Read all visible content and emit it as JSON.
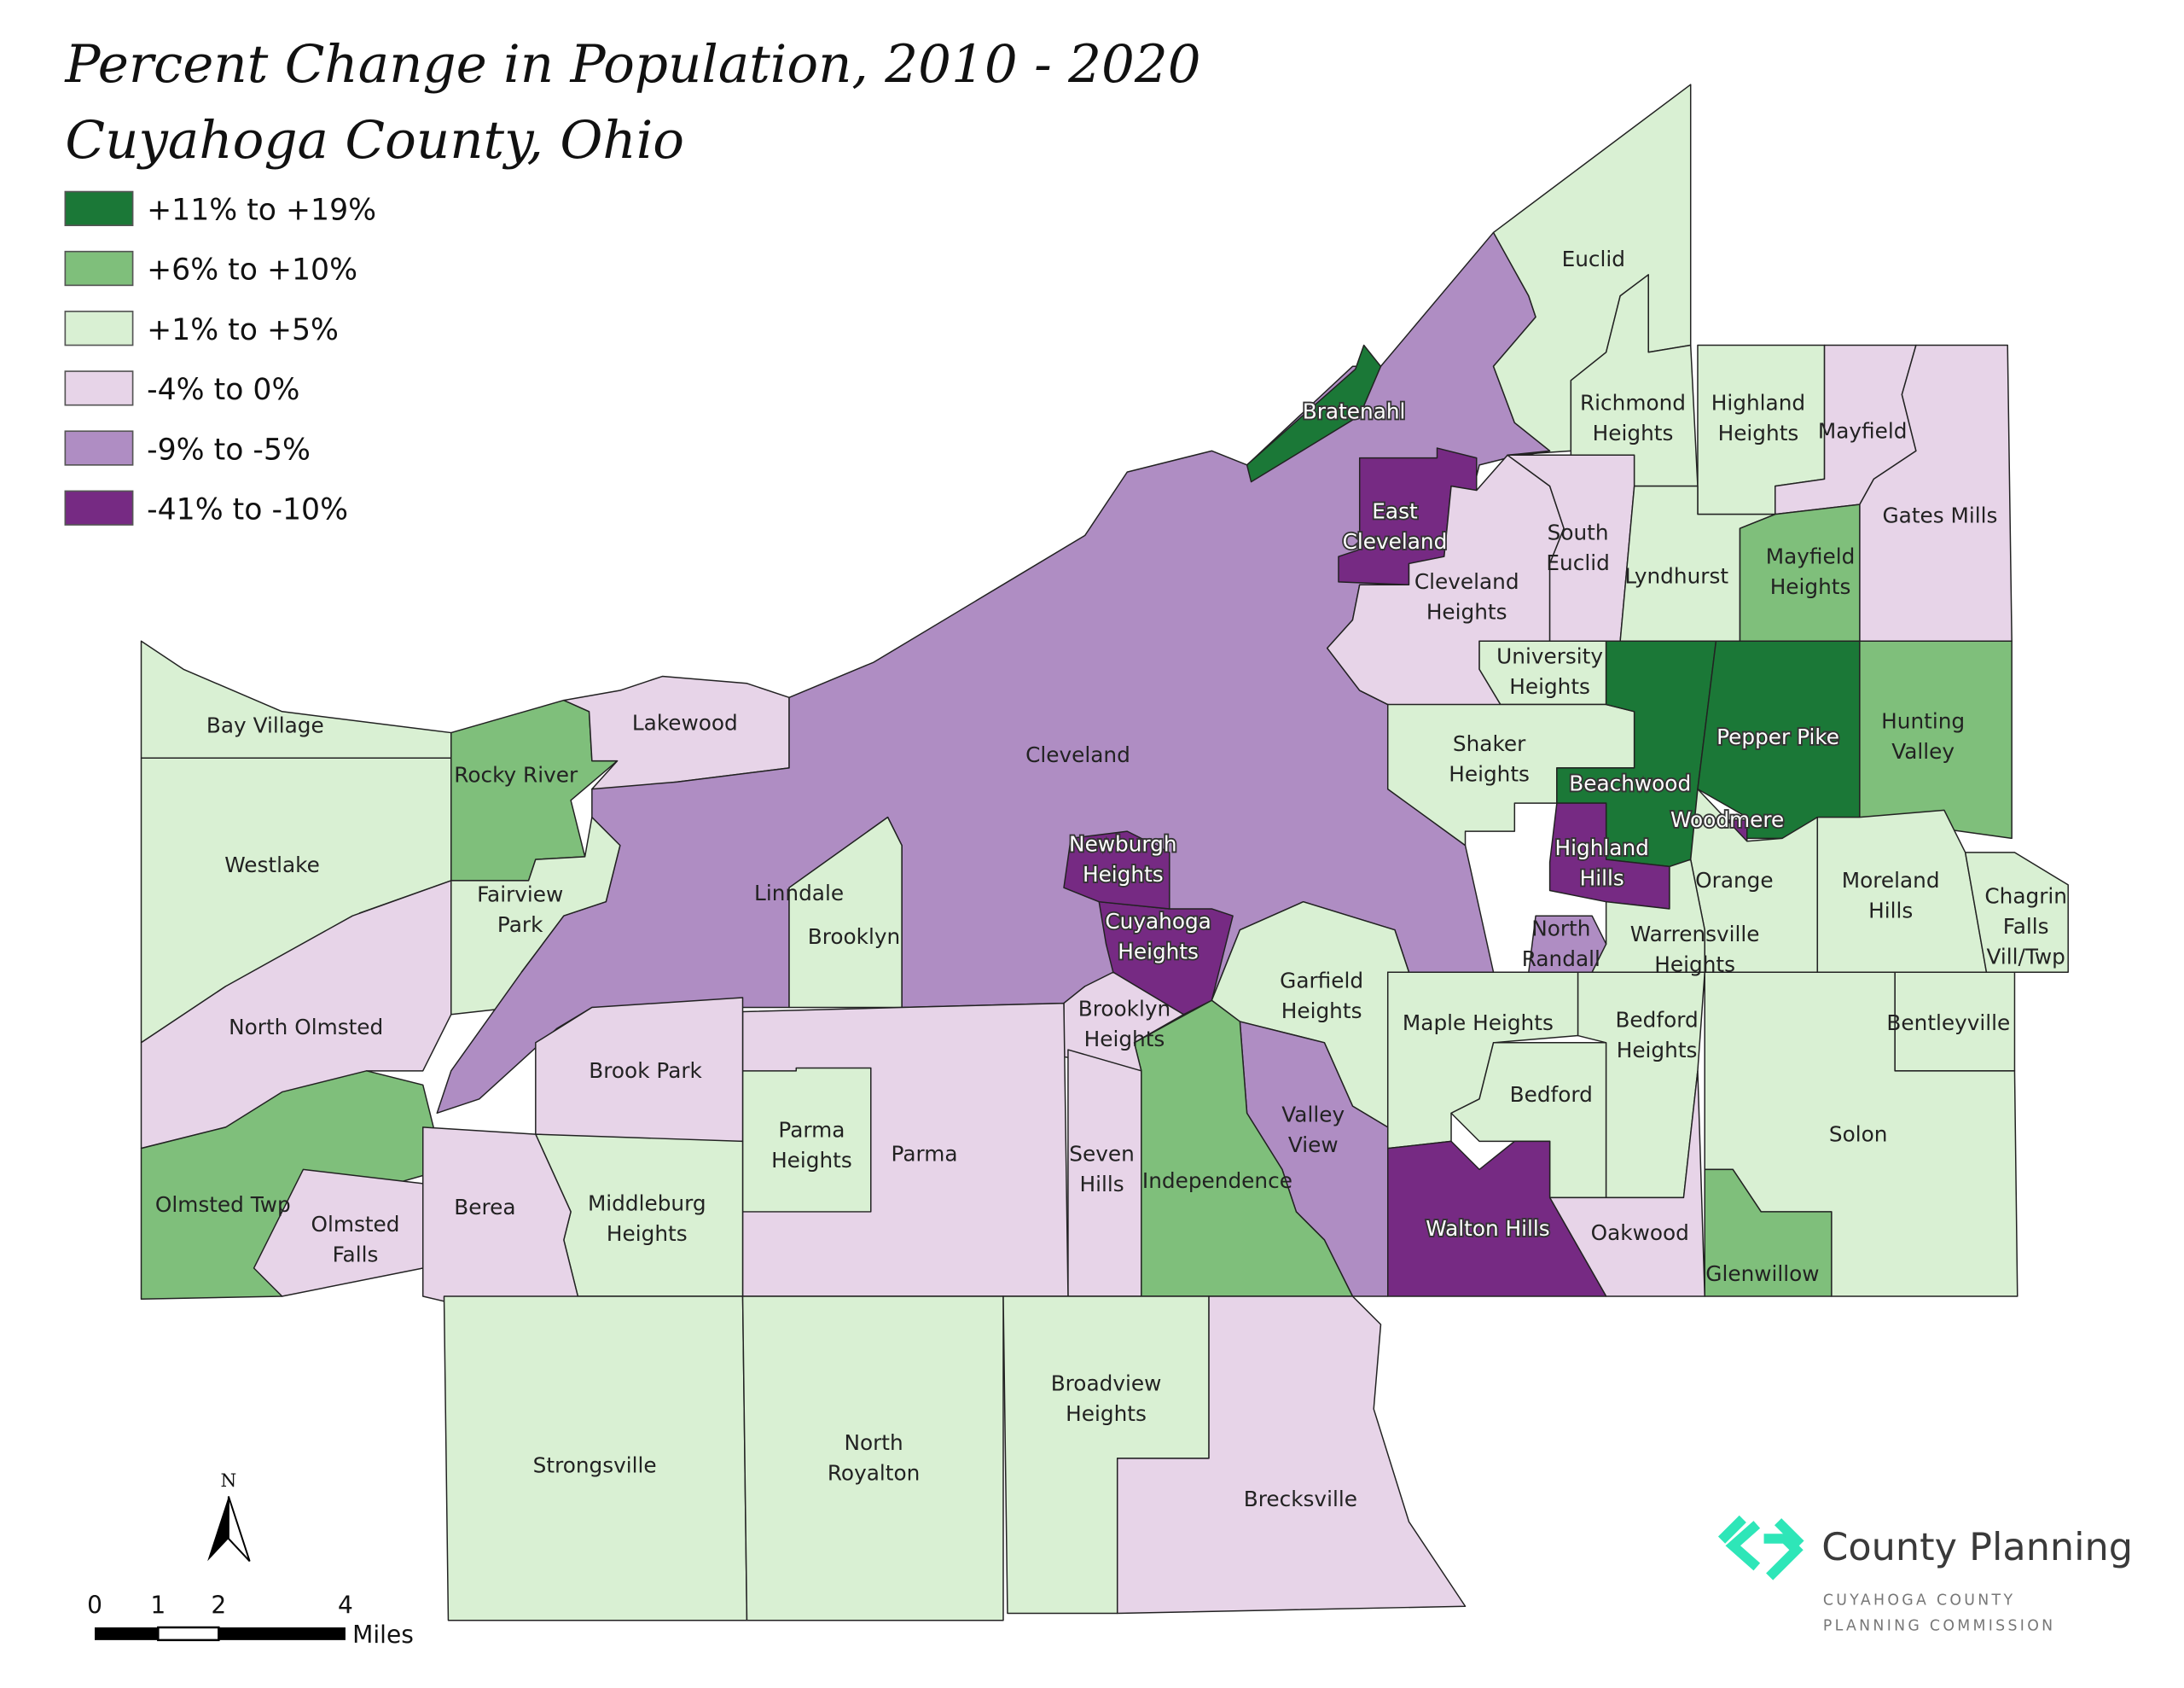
{
  "title": {
    "line1": "Percent Change in Population, 2010 - 2020",
    "line2": "Cuyahoga County, Ohio"
  },
  "legend": [
    {
      "label": "+11% to +19%",
      "color": "#1b7837"
    },
    {
      "label": "+6% to +10%",
      "color": "#7fbf7b"
    },
    {
      "label": "+1% to +5%",
      "color": "#d9f0d3"
    },
    {
      "label": "-4% to 0%",
      "color": "#e7d4e8"
    },
    {
      "label": "-9% to -5%",
      "color": "#af8dc3"
    },
    {
      "label": "-41% to -10%",
      "color": "#762a83"
    }
  ],
  "municipalities": [
    {
      "lines": [
        "Bay Village"
      ],
      "cat": 2
    },
    {
      "lines": [
        "Westlake"
      ],
      "cat": 2
    },
    {
      "lines": [
        "North Olmsted"
      ],
      "cat": 3
    },
    {
      "lines": [
        "Olmsted Twp"
      ],
      "cat": 1
    },
    {
      "lines": [
        "Olmsted",
        "Falls"
      ],
      "cat": 3
    },
    {
      "lines": [
        "Rocky River"
      ],
      "cat": 1
    },
    {
      "lines": [
        "Fairview",
        "Park"
      ],
      "cat": 2
    },
    {
      "lines": [
        "Lakewood"
      ],
      "cat": 3
    },
    {
      "lines": [
        "Cleveland"
      ],
      "cat": 4
    },
    {
      "lines": [
        "Bratenahl"
      ],
      "cat": 0
    },
    {
      "lines": [
        "East",
        "Cleveland"
      ],
      "cat": 5
    },
    {
      "lines": [
        "Cleveland",
        "Heights"
      ],
      "cat": 3
    },
    {
      "lines": [
        "South",
        "Euclid"
      ],
      "cat": 3
    },
    {
      "lines": [
        "Euclid"
      ],
      "cat": 2
    },
    {
      "lines": [
        "Richmond",
        "Heights"
      ],
      "cat": 2
    },
    {
      "lines": [
        "Highland",
        "Heights"
      ],
      "cat": 2
    },
    {
      "lines": [
        "Mayfield"
      ],
      "cat": 3
    },
    {
      "lines": [
        "Gates Mills"
      ],
      "cat": 3
    },
    {
      "lines": [
        "Lyndhurst"
      ],
      "cat": 2
    },
    {
      "lines": [
        "Mayfield",
        "Heights"
      ],
      "cat": 1
    },
    {
      "lines": [
        "University",
        "Heights"
      ],
      "cat": 2
    },
    {
      "lines": [
        "Shaker",
        "Heights"
      ],
      "cat": 2
    },
    {
      "lines": [
        "Beachwood"
      ],
      "cat": 0
    },
    {
      "lines": [
        "Pepper Pike"
      ],
      "cat": 0
    },
    {
      "lines": [
        "Hunting",
        "Valley"
      ],
      "cat": 1
    },
    {
      "lines": [
        "Woodmere"
      ],
      "cat": 5
    },
    {
      "lines": [
        "Highland",
        "Hills"
      ],
      "cat": 5
    },
    {
      "lines": [
        "Orange"
      ],
      "cat": 2
    },
    {
      "lines": [
        "Moreland",
        "Hills"
      ],
      "cat": 2
    },
    {
      "lines": [
        "Chagrin",
        "Falls",
        "Vill/Twp"
      ],
      "cat": 2
    },
    {
      "lines": [
        "Bentleyville"
      ],
      "cat": 2
    },
    {
      "lines": [
        "Solon"
      ],
      "cat": 2
    },
    {
      "lines": [
        "Glenwillow"
      ],
      "cat": 1
    },
    {
      "lines": [
        "Warrensville",
        "Heights"
      ],
      "cat": 2
    },
    {
      "lines": [
        "North",
        "Randall"
      ],
      "cat": 4
    },
    {
      "lines": [
        "Garfield",
        "Heights"
      ],
      "cat": 2
    },
    {
      "lines": [
        "Maple Heights"
      ],
      "cat": 2
    },
    {
      "lines": [
        "Bedford"
      ],
      "cat": 2
    },
    {
      "lines": [
        "Bedford",
        "Heights"
      ],
      "cat": 2
    },
    {
      "lines": [
        "Oakwood"
      ],
      "cat": 3
    },
    {
      "lines": [
        "Walton Hills"
      ],
      "cat": 5
    },
    {
      "lines": [
        "Valley",
        "View"
      ],
      "cat": 4
    },
    {
      "lines": [
        "Independence"
      ],
      "cat": 1
    },
    {
      "lines": [
        "Cuyahoga",
        "Heights"
      ],
      "cat": 5
    },
    {
      "lines": [
        "Newburgh",
        "Heights"
      ],
      "cat": 5
    },
    {
      "lines": [
        "Brooklyn",
        "Heights"
      ],
      "cat": 3
    },
    {
      "lines": [
        "Linndale"
      ],
      "cat": 5
    },
    {
      "lines": [
        "Brooklyn"
      ],
      "cat": 2
    },
    {
      "lines": [
        "Seven",
        "Hills"
      ],
      "cat": 3
    },
    {
      "lines": [
        "Parma"
      ],
      "cat": 3
    },
    {
      "lines": [
        "Parma",
        "Heights"
      ],
      "cat": 2
    },
    {
      "lines": [
        "Brook Park"
      ],
      "cat": 3
    },
    {
      "lines": [
        "Middleburg",
        "Heights"
      ],
      "cat": 2
    },
    {
      "lines": [
        "Berea"
      ],
      "cat": 3
    },
    {
      "lines": [
        "Strongsville"
      ],
      "cat": 2
    },
    {
      "lines": [
        "North",
        "Royalton"
      ],
      "cat": 2
    },
    {
      "lines": [
        "Broadview",
        "Heights"
      ],
      "cat": 2
    },
    {
      "lines": [
        "Brecksville"
      ],
      "cat": 3
    }
  ],
  "north_arrow": {
    "label": "N"
  },
  "scale_bar": {
    "ticks": [
      "0",
      "1",
      "2",
      "4"
    ],
    "unit": "Miles"
  },
  "logo": {
    "name": "County Planning",
    "sub1": "CUYAHOGA COUNTY",
    "sub2": "PLANNING COMMISSION",
    "color": "#2ee6b8"
  }
}
